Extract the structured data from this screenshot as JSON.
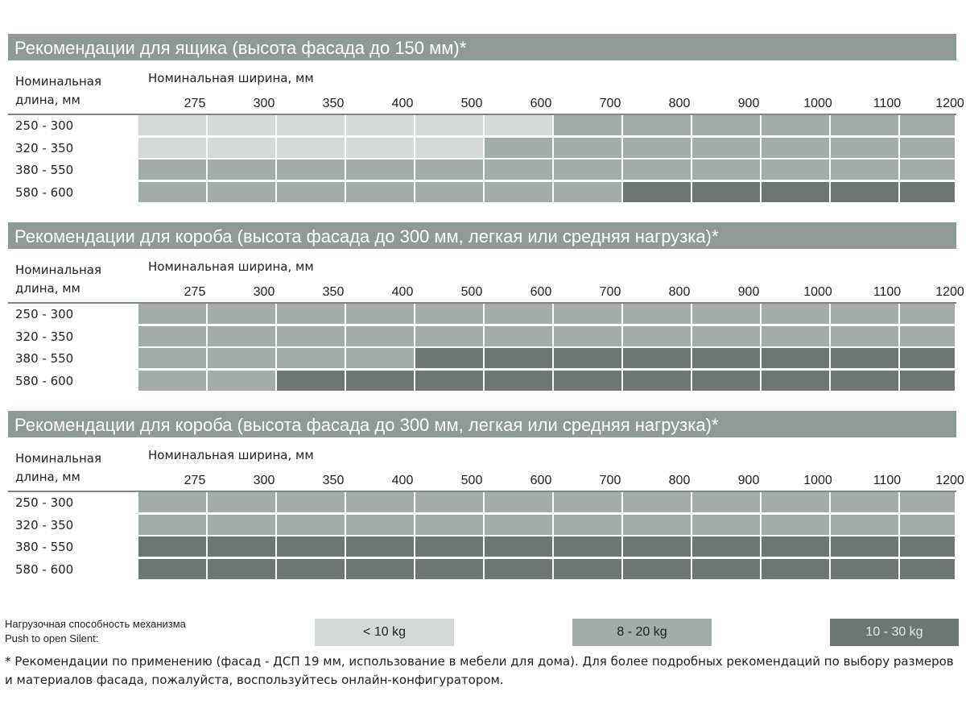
{
  "columns": [
    "275",
    "300",
    "350",
    "400",
    "500",
    "600",
    "700",
    "800",
    "900",
    "1000",
    "1100",
    "1200"
  ],
  "rows": [
    "250 - 300",
    "320 - 350",
    "380 - 550",
    "580 - 600"
  ],
  "length_header": [
    "Номинальная",
    "длина, мм"
  ],
  "width_header": "Номинальная ширина, мм",
  "levels": {
    "light": {
      "label": "< 10 kg",
      "color": "#d4d9d7",
      "text_color": "#1f1f1f"
    },
    "medium": {
      "label": "8 - 20 kg",
      "color": "#a2aca8",
      "text_color": "#1f1f1f"
    },
    "dark": {
      "label": "10 - 30 kg",
      "color": "#6c7774",
      "text_color": "#e4e8e6"
    }
  },
  "sections": [
    {
      "title": "Рекомендации для ящика (высота фасада до 150 мм)*",
      "grid": [
        [
          "light",
          "light",
          "light",
          "light",
          "light",
          "light",
          "medium",
          "medium",
          "medium",
          "medium",
          "medium",
          "medium"
        ],
        [
          "light",
          "light",
          "light",
          "light",
          "light",
          "medium",
          "medium",
          "medium",
          "medium",
          "medium",
          "medium",
          "medium"
        ],
        [
          "medium",
          "medium",
          "medium",
          "medium",
          "medium",
          "medium",
          "medium",
          "medium",
          "medium",
          "medium",
          "medium",
          "medium"
        ],
        [
          "medium",
          "medium",
          "medium",
          "medium",
          "medium",
          "medium",
          "medium",
          "dark",
          "dark",
          "dark",
          "dark",
          "dark"
        ]
      ]
    },
    {
      "title": "Рекомендации для короба (высота фасада до 300 мм, легкая или средняя нагрузка)*",
      "grid": [
        [
          "medium",
          "medium",
          "medium",
          "medium",
          "medium",
          "medium",
          "medium",
          "medium",
          "medium",
          "medium",
          "medium",
          "medium"
        ],
        [
          "medium",
          "medium",
          "medium",
          "medium",
          "medium",
          "medium",
          "medium",
          "medium",
          "medium",
          "medium",
          "medium",
          "medium"
        ],
        [
          "medium",
          "medium",
          "medium",
          "medium",
          "dark",
          "dark",
          "dark",
          "dark",
          "dark",
          "dark",
          "dark",
          "dark"
        ],
        [
          "medium",
          "medium",
          "dark",
          "dark",
          "dark",
          "dark",
          "dark",
          "dark",
          "dark",
          "dark",
          "dark",
          "dark"
        ]
      ]
    },
    {
      "title": "Рекомендации для короба (высота фасада до 300 мм, легкая или средняя нагрузка)*",
      "grid": [
        [
          "medium",
          "medium",
          "medium",
          "medium",
          "medium",
          "medium",
          "medium",
          "medium",
          "medium",
          "medium",
          "medium",
          "medium"
        ],
        [
          "medium",
          "medium",
          "medium",
          "medium",
          "medium",
          "medium",
          "medium",
          "medium",
          "medium",
          "medium",
          "medium",
          "medium"
        ],
        [
          "dark",
          "dark",
          "dark",
          "dark",
          "dark",
          "dark",
          "dark",
          "dark",
          "dark",
          "dark",
          "dark",
          "dark"
        ],
        [
          "dark",
          "dark",
          "dark",
          "dark",
          "dark",
          "dark",
          "dark",
          "dark",
          "dark",
          "dark",
          "dark",
          "dark"
        ]
      ]
    }
  ],
  "legend": {
    "title_lines": [
      "Нагрузочная способность механизма",
      "Push to open Silent:"
    ],
    "order": [
      "light",
      "medium",
      "dark"
    ]
  },
  "footnote": "* Рекомендации по применению (фасад - ДСП 19 мм, использование в мебели для дома). Для более подробных рекомендаций по выбору размеров и материалов фасада, пожалуйста, воспользуйтесь онлайн-конфигуратором."
}
